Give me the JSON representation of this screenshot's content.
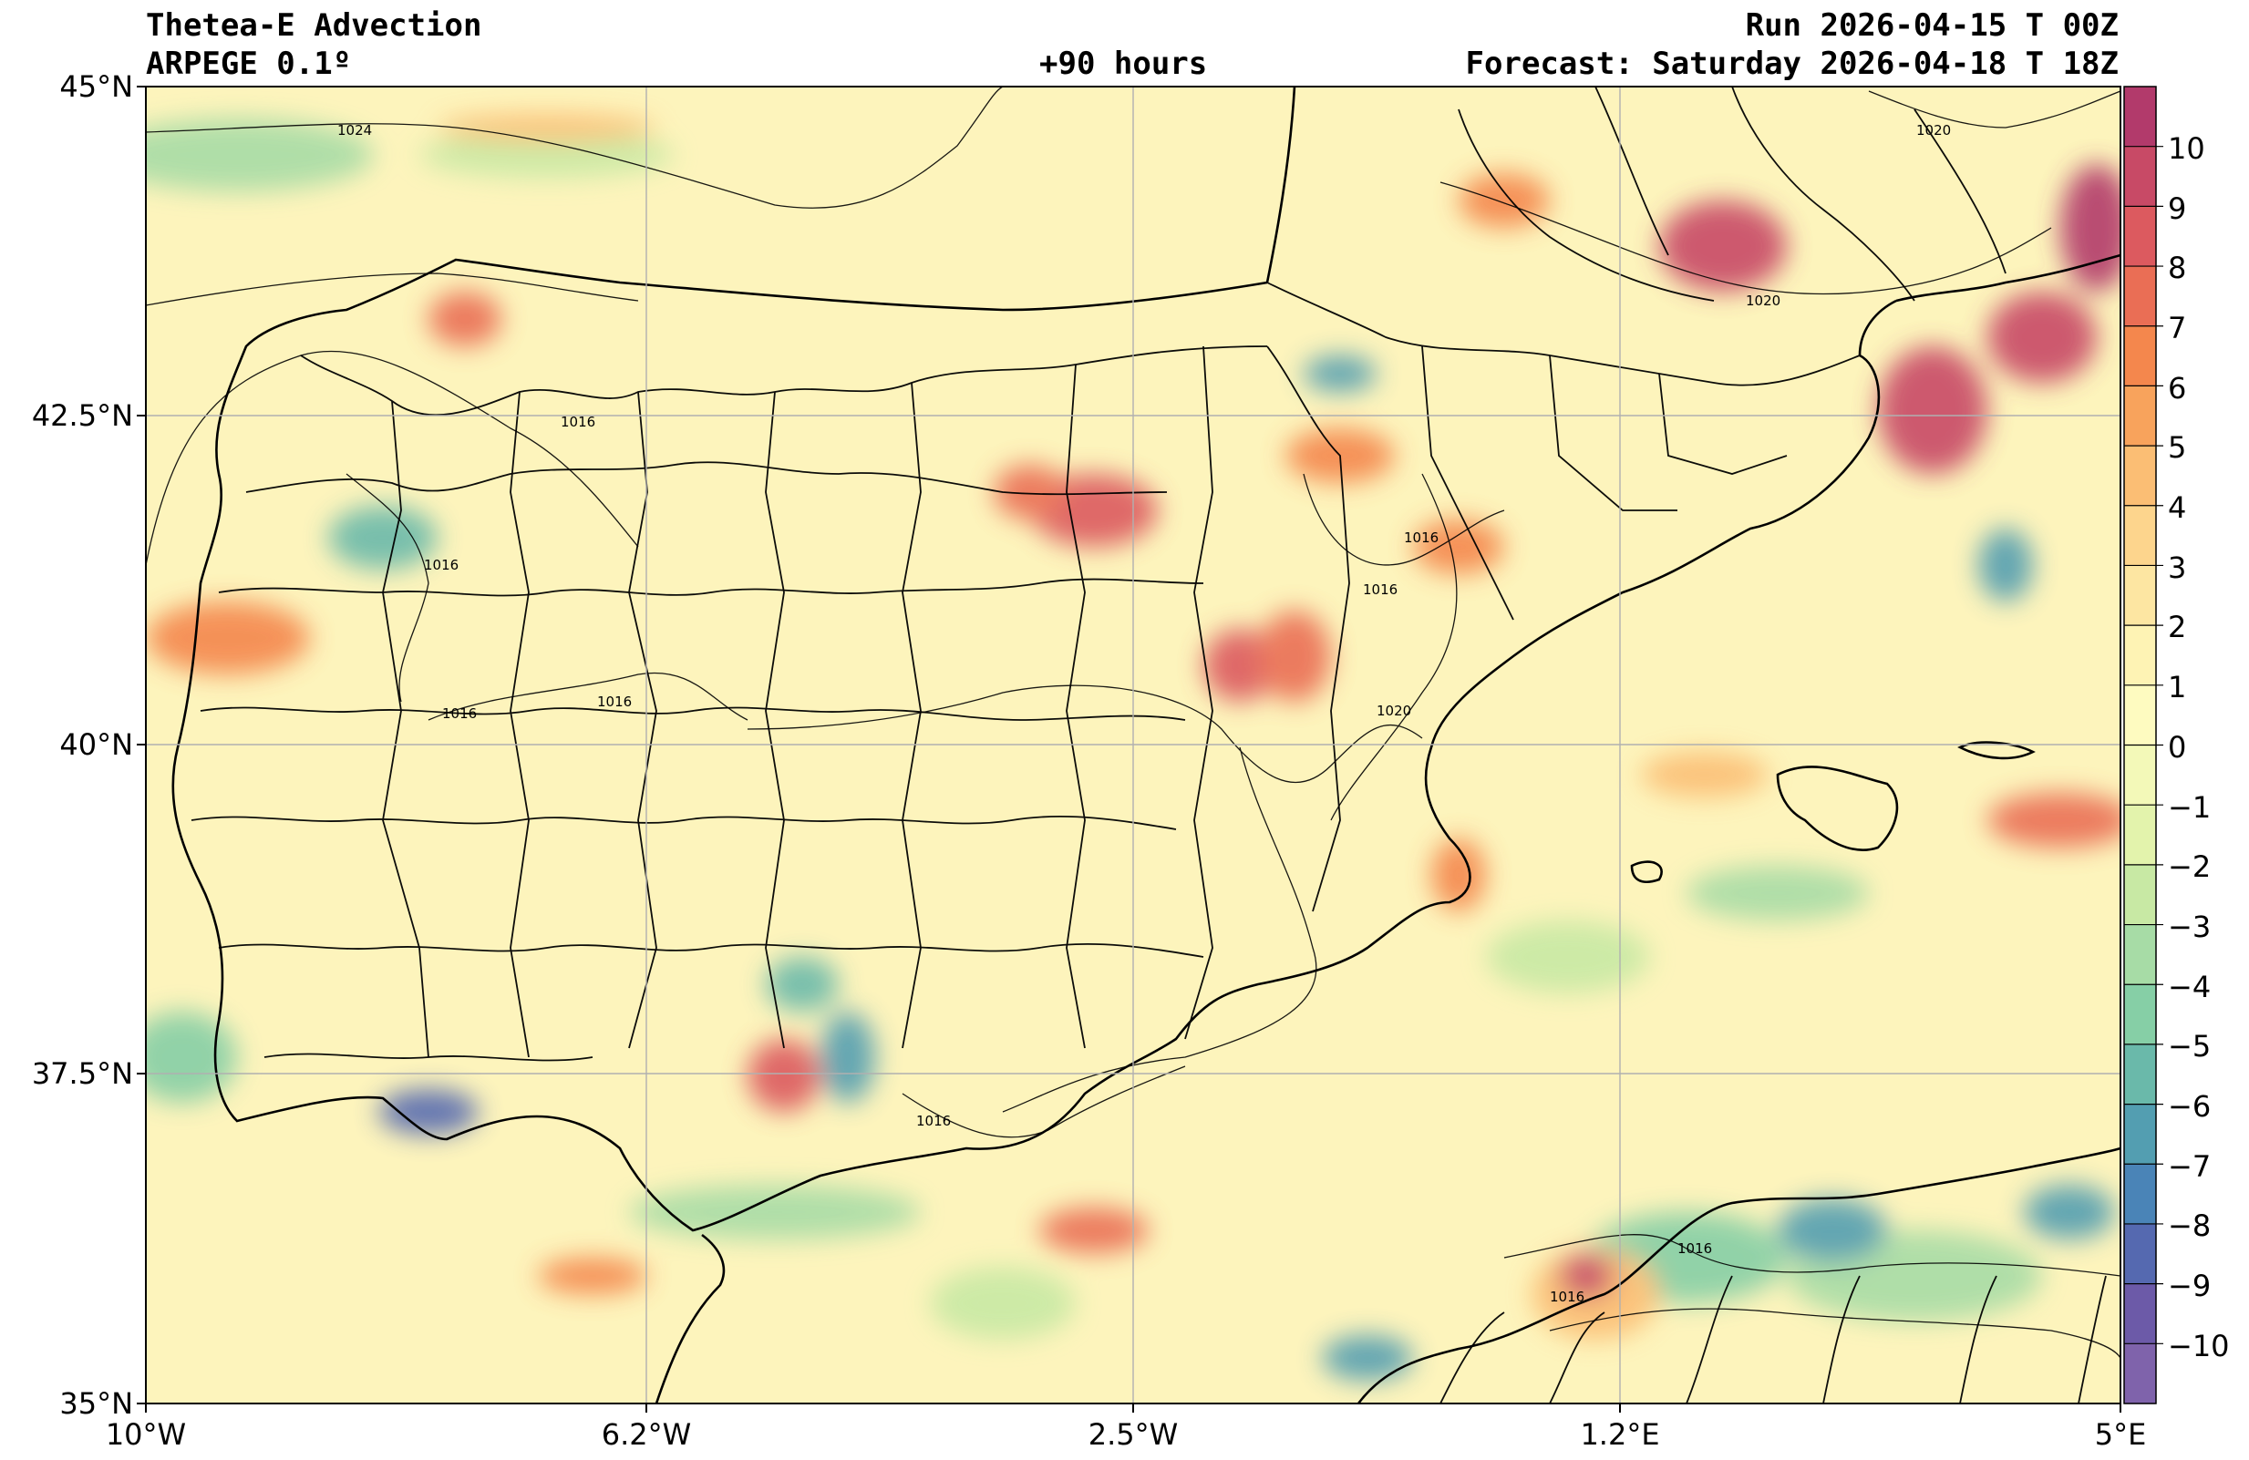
{
  "header": {
    "title": "Thetea-E Advection",
    "model": "ARPEGE 0.1º",
    "lead": "+90 hours",
    "run": "Run 2026-04-15 T 00Z",
    "forecast": "Forecast: Saturday 2026-04-18 T 18Z"
  },
  "axes": {
    "lat_labels": [
      "45°N",
      "42.5°N",
      "40°N",
      "37.5°N",
      "35°N"
    ],
    "lon_labels": [
      "10°W",
      "6.2°W",
      "2.5°W",
      "1.2°E",
      "5°E"
    ],
    "lat_range": [
      35,
      45
    ],
    "lon_range": [
      -10,
      5
    ]
  },
  "colorbar": {
    "ticks": [
      "10",
      "9",
      "8",
      "7",
      "6",
      "5",
      "4",
      "3",
      "2",
      "1",
      "0",
      "−1",
      "−2",
      "−3",
      "−4",
      "−5",
      "−6",
      "−7",
      "−8",
      "−9",
      "−10"
    ],
    "range": [
      -11,
      11
    ],
    "colors_top_to_bottom": [
      "#b23a6b",
      "#c84a66",
      "#dc5a5f",
      "#ea6e55",
      "#f4874d",
      "#f8a35c",
      "#fbbe74",
      "#fdd58d",
      "#fde6a2",
      "#fef3b4",
      "#fefbc0",
      "#f3f9b8",
      "#e3f3ac",
      "#c8e9a4",
      "#a7dca6",
      "#86cfa6",
      "#6ab9aa",
      "#539eb1",
      "#4a84b7",
      "#5569b0",
      "#6c5aa8",
      "#7f63ab"
    ]
  },
  "isobars": {
    "labels": [
      "1024",
      "1016",
      "1016",
      "1016",
      "1016",
      "1016",
      "1016",
      "1020",
      "1020",
      "1020",
      "1016",
      "1016",
      "1016"
    ]
  }
}
